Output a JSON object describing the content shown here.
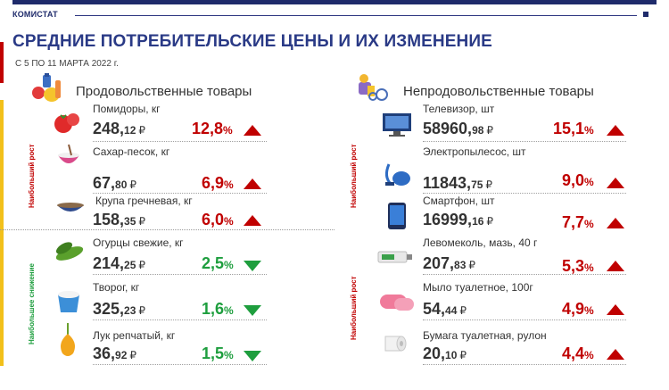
{
  "header": {
    "brand": "КОМИСТАТ",
    "title": "СРЕДНИЕ ПОТРЕБИТЕЛЬСКИЕ ЦЕНЫ  И ИХ ИЗМЕНЕНИЕ",
    "period": "С 5 ПО  11 МАРТА  2022 г."
  },
  "food": {
    "title": "Продовольственные товары",
    "growth_label": "Наибольший рост",
    "decline_label": "Наибольшее снижение",
    "items": [
      {
        "name": "Помидоры, кг",
        "int": "248,",
        "dec": "12",
        "cur": "₽",
        "pct": "12,8",
        "sfx": "%"
      },
      {
        "name": "Сахар-песок, кг",
        "int": "67,",
        "dec": "80",
        "cur": "₽",
        "pct": "6,9",
        "sfx": "%"
      },
      {
        "name": "Крупа гречневая, кг",
        "int": "158,",
        "dec": "35",
        "cur": "₽",
        "pct": "6,0",
        "sfx": "%"
      },
      {
        "name": "Огурцы свежие, кг",
        "int": "214,",
        "dec": "25",
        "cur": "₽",
        "pct": "2,5",
        "sfx": "%"
      },
      {
        "name": "Творог, кг",
        "int": "325,",
        "dec": "23",
        "cur": "₽",
        "pct": "1,6",
        "sfx": "%"
      },
      {
        "name": "Лук репчатый, кг",
        "int": "36,",
        "dec": "92",
        "cur": "₽",
        "pct": "1,5",
        "sfx": "%"
      }
    ]
  },
  "nonfood": {
    "title": "Непродовольственные товары",
    "growth_label_1": "Наибольший рост",
    "growth_label_2": "Наибольший рост",
    "items": [
      {
        "name": "Телевизор, шт",
        "int": "58960,",
        "dec": "98",
        "cur": "₽",
        "pct": "15,1",
        "sfx": "%"
      },
      {
        "name": "Электропылесос, шт",
        "int": "11843,",
        "dec": "75",
        "cur": "₽",
        "pct": "9,0",
        "sfx": "%"
      },
      {
        "name": "Смартфон, шт",
        "int": "16999,",
        "dec": "16",
        "cur": "₽",
        "pct": "7,7",
        "sfx": "%"
      },
      {
        "name": "Левомеколь, мазь, 40 г",
        "int": "207,",
        "dec": "83",
        "cur": "₽",
        "pct": "5,3",
        "sfx": "%"
      },
      {
        "name": "Мыло туалетное, 100г",
        "int": "54,",
        "dec": "44",
        "cur": "₽",
        "pct": "4,9",
        "sfx": "%"
      },
      {
        "name": "Бумага туалетная, рулон",
        "int": "20,",
        "dec": "10",
        "cur": "₽",
        "pct": "4,4",
        "sfx": "%"
      }
    ]
  },
  "colors": {
    "up": "#c00000",
    "down": "#1e9e3e",
    "accent": "#2a3a86"
  }
}
